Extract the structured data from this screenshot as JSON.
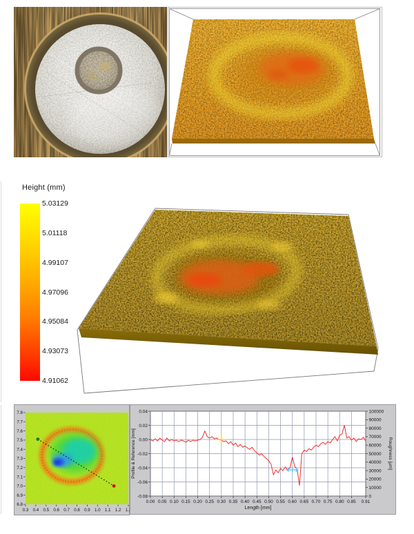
{
  "page": {
    "background": "#ffffff"
  },
  "photo": {
    "label": "optical photo of metal sample with circular indentation"
  },
  "top_render": {
    "label": "3D height surface rendering (small)"
  },
  "mid_render": {
    "label": "3D height surface rendering (large)"
  },
  "legend": {
    "title": "Height (mm)",
    "ticks": [
      "5.03129",
      "5.01118",
      "4.99107",
      "4.97096",
      "4.95084",
      "4.93073",
      "4.91062"
    ],
    "top_color": "#ffff00",
    "mid_color": "#ff8000",
    "bottom_color": "#ff0000"
  },
  "colors": {
    "panel_bg": "#cacacd",
    "panel_border": "#9a9aa0",
    "plot_border": "#6a6a78",
    "grid": "#8e96ae",
    "tick_text": "#111111",
    "profile_line": "#f03030",
    "cursor_yellow": "#ffd400",
    "cursor_cyan": "#5bc8f5",
    "map_base": "#dce70a",
    "map_ring": "#f07f18",
    "map_line": "#151515",
    "map_start_dot": "#1a7a1a",
    "map_end_dot": "#cc1111"
  },
  "chart_data": [
    {
      "id": "height-map-2d",
      "type": "heatmap",
      "title": "",
      "xlabel": "",
      "ylabel": "",
      "xlim": [
        0.3,
        1.3
      ],
      "ylim": [
        6.8,
        7.8
      ],
      "x_ticks": [
        "0.3",
        "0.4",
        "0.5",
        "0.6",
        "0.7",
        "0.8",
        "0.9",
        "1.0",
        "1.1",
        "1.2",
        "1.3"
      ],
      "y_ticks": [
        "7.8",
        "7.7",
        "7.6",
        "7.5",
        "7.4",
        "7.3",
        "7.2",
        "7.1",
        "7.0",
        "6.9",
        "6.8"
      ],
      "grid": false,
      "colormap": "rainbow (yellow background, orange rim ring, green-cyan-blue depression)",
      "ring": {
        "cx": 0.75,
        "cy": 7.33,
        "rx": 0.29,
        "ry": 0.285
      },
      "blobs": [
        {
          "cx": 0.78,
          "cy": 7.36,
          "rx": 0.24,
          "ry": 0.215,
          "color": "#3fd53f",
          "blur": 5,
          "opacity": 0.85
        },
        {
          "cx": 0.82,
          "cy": 7.38,
          "rx": 0.16,
          "ry": 0.135,
          "color": "#1ecfae",
          "blur": 4,
          "opacity": 0.9
        },
        {
          "cx": 0.66,
          "cy": 7.28,
          "rx": 0.1,
          "ry": 0.075,
          "color": "#2f9ae8",
          "blur": 3,
          "opacity": 0.9
        },
        {
          "cx": 0.62,
          "cy": 7.26,
          "rx": 0.055,
          "ry": 0.045,
          "color": "#2453e8",
          "blur": 2,
          "opacity": 0.95
        },
        {
          "cx": 0.61,
          "cy": 7.255,
          "rx": 0.025,
          "ry": 0.02,
          "color": "#1b35cf",
          "blur": 1.5,
          "opacity": 0.95
        }
      ],
      "profile_line": {
        "start": [
          0.42,
          7.51
        ],
        "end": [
          1.16,
          7.0
        ]
      }
    },
    {
      "id": "profile-roughness-plot",
      "type": "line",
      "title": "",
      "xlabel": "Length [mm]",
      "ylabel_left": "Profile & Reference [mm]",
      "ylabel_right": "Roughness [µm]",
      "xlim": [
        0,
        0.91
      ],
      "ylim_left": [
        -0.08,
        0.04
      ],
      "ylim_right": [
        0,
        100000
      ],
      "x_ticks": [
        "0.00",
        "0.05",
        "0.10",
        "0.15",
        "0.20",
        "0.25",
        "0.30",
        "0.35",
        "0.40",
        "0.45",
        "0.50",
        "0.55",
        "0.60",
        "0.65",
        "0.70",
        "0.75",
        "0.80",
        "0.85",
        "0.91"
      ],
      "y_ticks_left": [
        "0.04",
        "0.02",
        "0.00",
        "-0.02",
        "-0.04",
        "-0.06",
        "-0.08"
      ],
      "y_ticks_right": [
        "100000",
        "90000",
        "80000",
        "70000",
        "60000",
        "50000",
        "40000",
        "30000",
        "20000",
        "10000",
        "0"
      ],
      "grid": true,
      "legend_position": "none",
      "line_color": "#f03030",
      "x_start": 0.0,
      "x_step": 0.01,
      "y": [
        0.0,
        -0.002,
        0.001,
        -0.002,
        0.002,
        -0.001,
        -0.003,
        0.002,
        -0.002,
        0.0,
        -0.002,
        -0.001,
        -0.003,
        -0.001,
        -0.002,
        -0.004,
        -0.001,
        -0.003,
        -0.001,
        -0.002,
        -0.001,
        0.0,
        0.003,
        0.012,
        0.004,
        0.002,
        0.004,
        0.001,
        0.002,
        0.0,
        -0.001,
        -0.003,
        -0.002,
        -0.006,
        -0.003,
        -0.008,
        -0.005,
        -0.01,
        -0.007,
        -0.011,
        -0.009,
        -0.012,
        -0.014,
        -0.011,
        -0.016,
        -0.019,
        -0.022,
        -0.02,
        -0.024,
        -0.027,
        -0.03,
        -0.035,
        -0.05,
        -0.043,
        -0.047,
        -0.041,
        -0.044,
        -0.039,
        -0.043,
        -0.04,
        -0.025,
        -0.038,
        -0.042,
        -0.065,
        -0.02,
        -0.015,
        -0.017,
        -0.013,
        -0.015,
        -0.011,
        -0.008,
        -0.01,
        -0.006,
        -0.004,
        -0.007,
        -0.003,
        -0.005,
        0.0,
        0.004,
        -0.002,
        0.006,
        0.008,
        0.02,
        0.002,
        0.004,
        -0.001,
        0.002,
        -0.003,
        0.001,
        0.0,
        0.003,
        -0.002
      ],
      "cursors": [
        {
          "x": 0.3,
          "y": 0.0,
          "color": "#ffd400",
          "style": "cross"
        },
        {
          "x": 0.6,
          "y": -0.043,
          "color": "#5bc8f5",
          "style": "h-arrows"
        }
      ]
    }
  ]
}
